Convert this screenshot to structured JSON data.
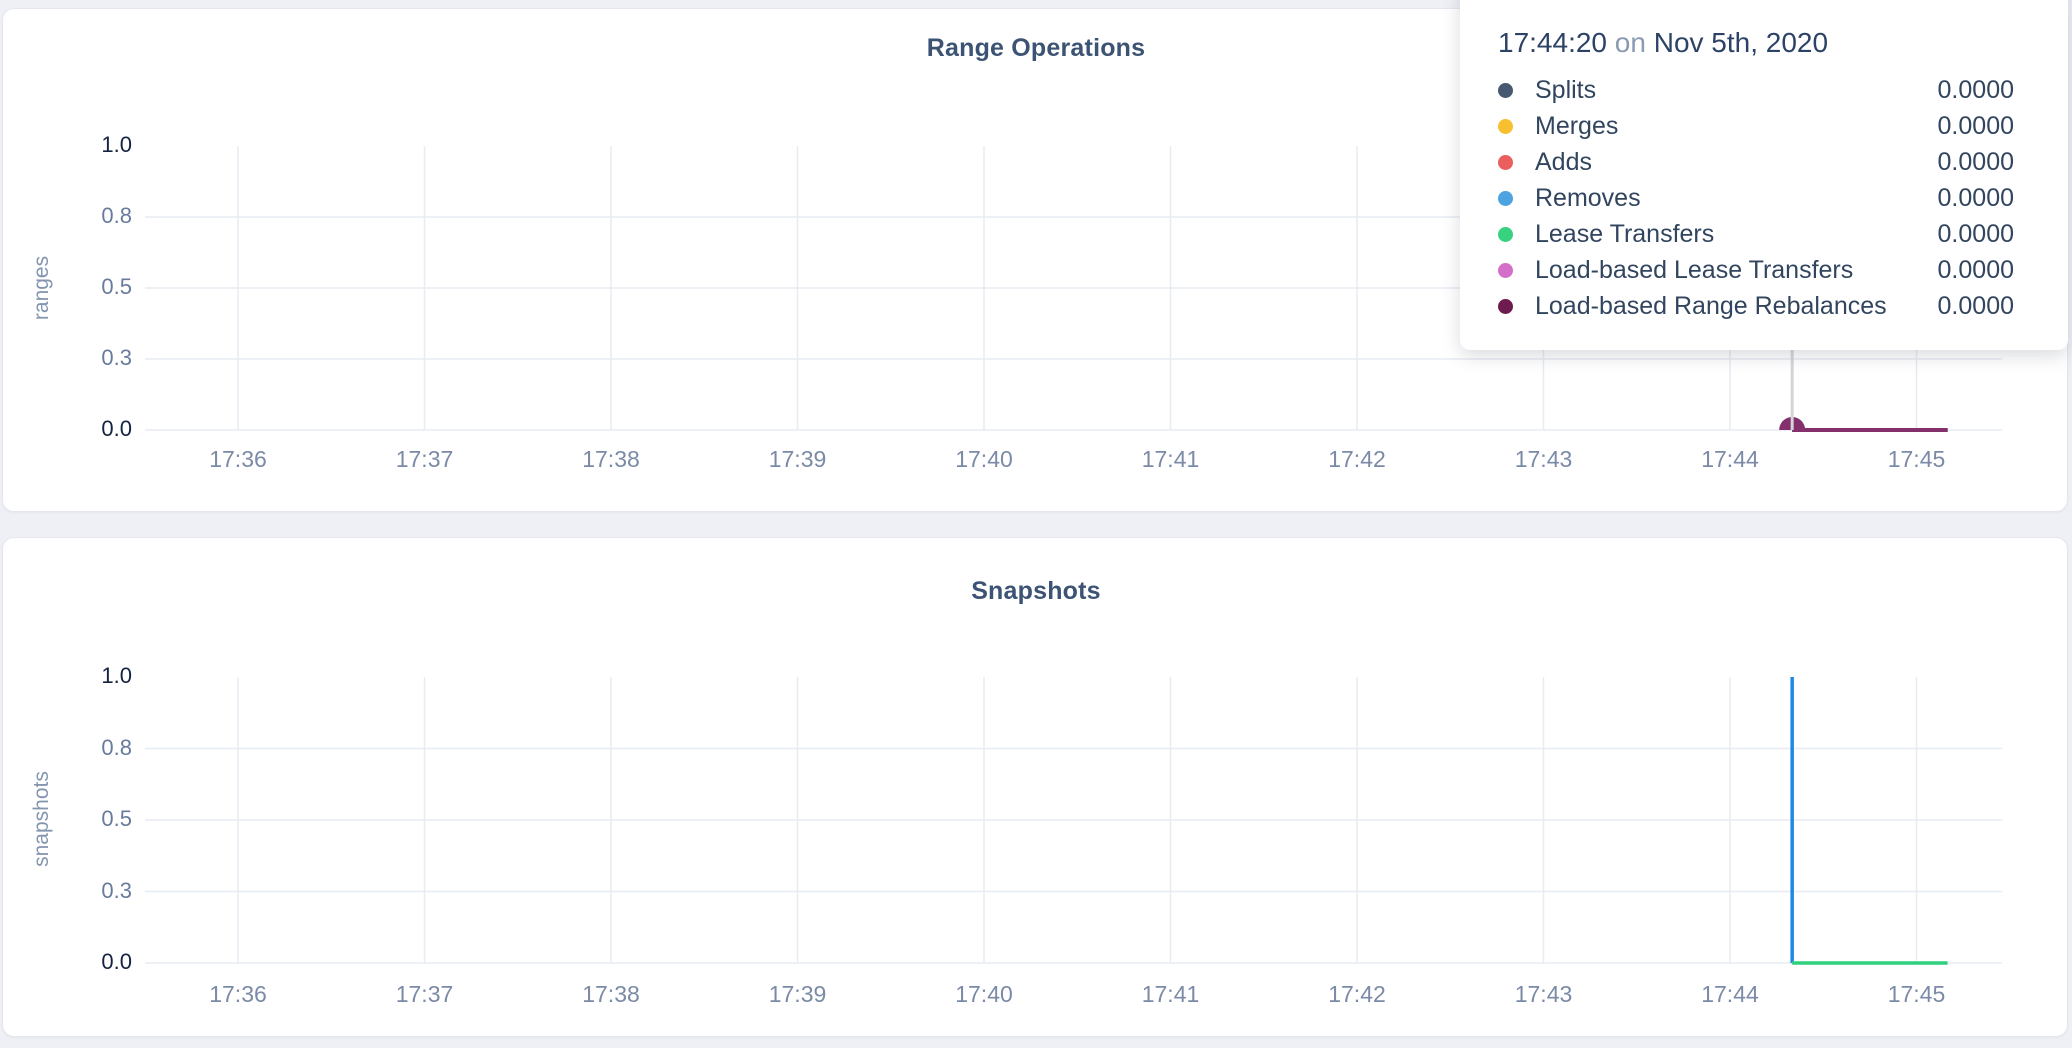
{
  "tooltip": {
    "time": "17:44:20",
    "connector": "on",
    "date": "Nov 5th, 2020",
    "rows": [
      {
        "label": "Splits",
        "value": "0.0000",
        "color": "#475872"
      },
      {
        "label": "Merges",
        "value": "0.0000",
        "color": "#f8c02e"
      },
      {
        "label": "Adds",
        "value": "0.0000",
        "color": "#eb5e5e"
      },
      {
        "label": "Removes",
        "value": "0.0000",
        "color": "#4da2e0"
      },
      {
        "label": "Lease Transfers",
        "value": "0.0000",
        "color": "#36d27d"
      },
      {
        "label": "Load-based Lease Transfers",
        "value": "0.0000",
        "color": "#d36fc9"
      },
      {
        "label": "Load-based Range Rebalances",
        "value": "0.0000",
        "color": "#6e1b4f"
      }
    ]
  },
  "chart_data": [
    {
      "type": "line",
      "title": "Range Operations",
      "ylabel": "ranges",
      "ylim": [
        0,
        1
      ],
      "x_ticks": [
        "17:36",
        "17:37",
        "17:38",
        "17:39",
        "17:40",
        "17:41",
        "17:42",
        "17:43",
        "17:44",
        "17:45"
      ],
      "y_ticks": [
        {
          "label": "1.0",
          "value": 1.0,
          "grid": false,
          "strong": true
        },
        {
          "label": "0.8",
          "value": 0.75,
          "grid": true,
          "strong": false
        },
        {
          "label": "0.5",
          "value": 0.5,
          "grid": true,
          "strong": false
        },
        {
          "label": "0.3",
          "value": 0.25,
          "grid": true,
          "strong": false
        },
        {
          "label": "0.0",
          "value": 0.0,
          "grid": true,
          "strong": true
        }
      ],
      "series": [
        {
          "name": "Splits",
          "color": "#475872",
          "width": 3.5,
          "points": [
            [
              "17:44:20",
              0
            ],
            [
              "17:45:10",
              0
            ]
          ]
        },
        {
          "name": "Merges",
          "color": "#f8c02e",
          "width": 3.5,
          "points": [
            [
              "17:44:20",
              0
            ],
            [
              "17:45:10",
              0
            ]
          ]
        },
        {
          "name": "Adds",
          "color": "#eb5e5e",
          "width": 3.5,
          "points": [
            [
              "17:44:20",
              0
            ],
            [
              "17:45:10",
              0
            ]
          ]
        },
        {
          "name": "Removes",
          "color": "#4da2e0",
          "width": 3.5,
          "points": [
            [
              "17:44:20",
              0
            ],
            [
              "17:45:10",
              0
            ]
          ]
        },
        {
          "name": "Lease Transfers",
          "color": "#36d27d",
          "width": 3.5,
          "points": [
            [
              "17:44:20",
              0
            ],
            [
              "17:45:10",
              0
            ]
          ]
        },
        {
          "name": "Load-based Lease Transfers",
          "color": "#d36fc9",
          "width": 3.5,
          "points": [
            [
              "17:44:20",
              0
            ],
            [
              "17:45:10",
              0
            ]
          ]
        },
        {
          "name": "Load-based Range Rebalances",
          "color": "#84306d",
          "width": 4,
          "points": [
            [
              "17:44:20",
              0
            ],
            [
              "17:45:10",
              0
            ]
          ]
        }
      ],
      "hover": {
        "time": "17:44:20",
        "value": 0,
        "color": "#84306d"
      },
      "legend_position": "tooltip-overlay",
      "grid": true
    },
    {
      "type": "line",
      "title": "Snapshots",
      "ylabel": "snapshots",
      "ylim": [
        0,
        1
      ],
      "x_ticks": [
        "17:36",
        "17:37",
        "17:38",
        "17:39",
        "17:40",
        "17:41",
        "17:42",
        "17:43",
        "17:44",
        "17:45"
      ],
      "y_ticks": [
        {
          "label": "1.0",
          "value": 1.0,
          "grid": false,
          "strong": true
        },
        {
          "label": "0.8",
          "value": 0.75,
          "grid": true,
          "strong": false
        },
        {
          "label": "0.5",
          "value": 0.5,
          "grid": true,
          "strong": false
        },
        {
          "label": "0.3",
          "value": 0.25,
          "grid": true,
          "strong": false
        },
        {
          "label": "0.0",
          "value": 0.0,
          "grid": true,
          "strong": true
        }
      ],
      "series": [
        {
          "color": "#1f88e4",
          "width": 3.5,
          "points": [
            [
              "17:44:20",
              1
            ],
            [
              "17:44:20",
              0
            ]
          ]
        },
        {
          "color": "#2fd07c",
          "width": 3.5,
          "points": [
            [
              "17:44:20",
              0
            ],
            [
              "17:45:10",
              0
            ]
          ]
        }
      ],
      "grid": true
    }
  ]
}
